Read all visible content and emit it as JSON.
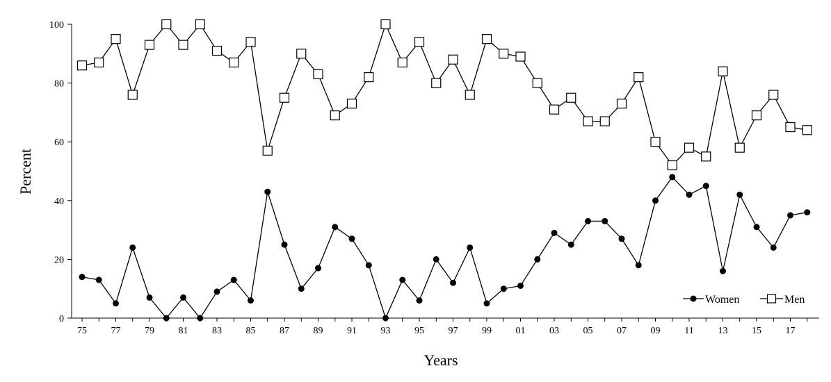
{
  "chart_data": {
    "type": "line",
    "title": "",
    "xlabel": "Years",
    "ylabel": "Percent",
    "x": [
      "75",
      "76",
      "77",
      "78",
      "79",
      "80",
      "81",
      "82",
      "83",
      "84",
      "85",
      "86",
      "87",
      "88",
      "89",
      "90",
      "91",
      "92",
      "93",
      "94",
      "95",
      "96",
      "97",
      "98",
      "99",
      "00",
      "01",
      "02",
      "03",
      "04",
      "05",
      "06",
      "07",
      "08",
      "09",
      "10",
      "11",
      "12",
      "13",
      "14",
      "15",
      "16",
      "17",
      "18"
    ],
    "x_tick_labels": [
      "75",
      "77",
      "79",
      "81",
      "83",
      "85",
      "87",
      "89",
      "91",
      "93",
      "95",
      "97",
      "99",
      "01",
      "03",
      "05",
      "07",
      "09",
      "11",
      "13",
      "15",
      "17"
    ],
    "ylim": [
      0,
      100
    ],
    "y_ticks": [
      0,
      20,
      40,
      60,
      80,
      100
    ],
    "grid": false,
    "legend_position": "bottom-right",
    "series": [
      {
        "name": "Women",
        "marker": "filled-circle",
        "color": "#000000",
        "values": [
          14,
          13,
          5,
          24,
          7,
          0,
          7,
          0,
          9,
          13,
          6,
          43,
          25,
          10,
          17,
          31,
          27,
          18,
          0,
          13,
          6,
          20,
          12,
          24,
          5,
          10,
          11,
          20,
          29,
          25,
          33,
          33,
          27,
          18,
          40,
          48,
          42,
          45,
          16,
          42,
          31,
          24,
          35,
          36
        ]
      },
      {
        "name": "Men",
        "marker": "open-square",
        "color": "#000000",
        "values": [
          86,
          87,
          95,
          76,
          93,
          100,
          93,
          100,
          91,
          87,
          94,
          57,
          75,
          90,
          83,
          69,
          73,
          82,
          100,
          87,
          94,
          80,
          88,
          76,
          95,
          90,
          89,
          80,
          71,
          75,
          67,
          67,
          73,
          82,
          60,
          52,
          58,
          55,
          84,
          58,
          69,
          76,
          65,
          64
        ]
      }
    ]
  }
}
